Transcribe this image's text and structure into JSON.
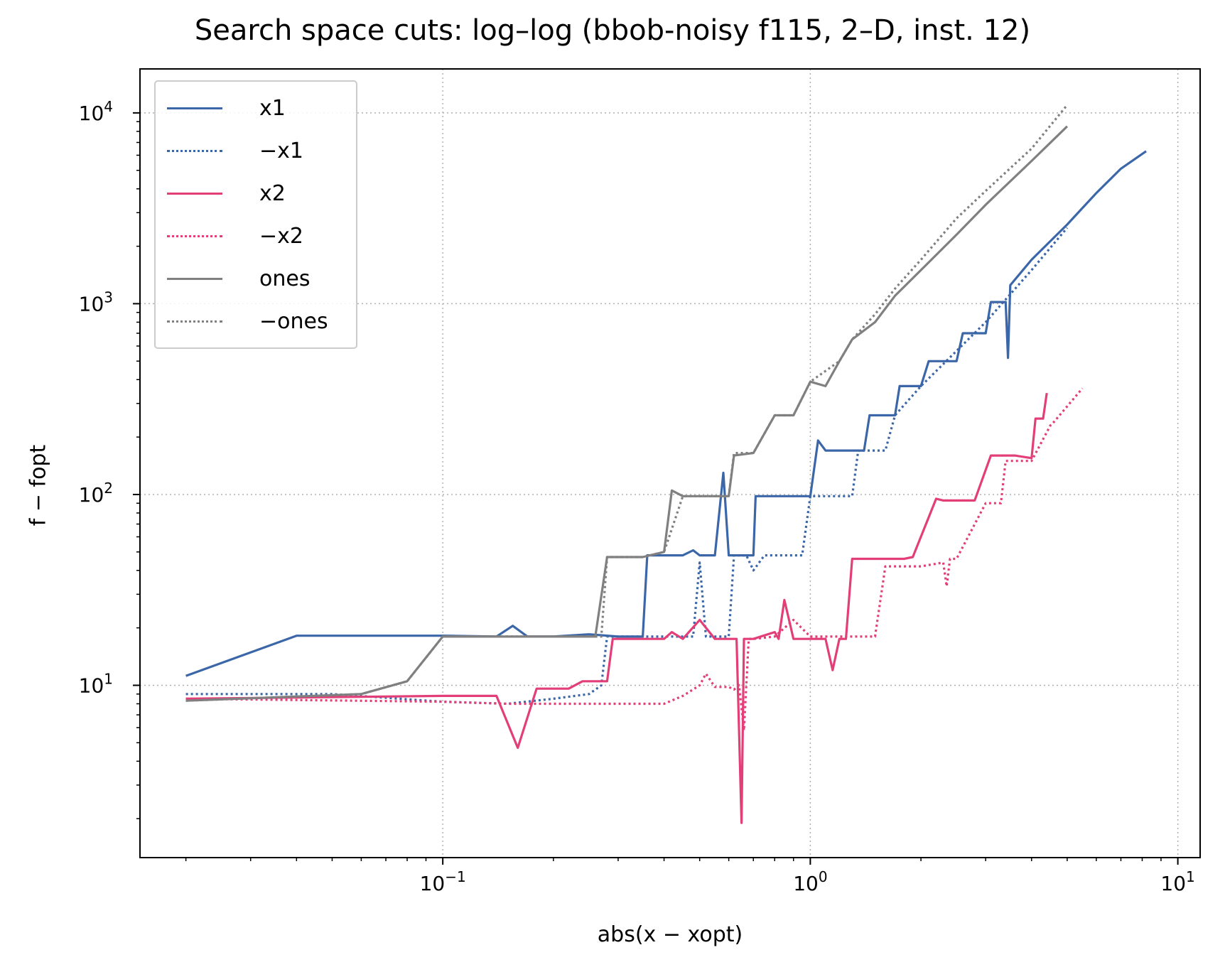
{
  "chart_data": {
    "type": "line",
    "title": "Search space cuts: log–log (bbob-noisy f115, 2–D, inst. 12)",
    "xlabel": "abs(x − xopt)",
    "ylabel": "f − fopt",
    "xscale": "log",
    "yscale": "log",
    "xlim": [
      0.015,
      11.5
    ],
    "ylim": [
      1.25,
      17000
    ],
    "grid": true,
    "grid_style": "dotted",
    "legend_position": "top-left",
    "x_tick_labels": [
      "10^-1",
      "10^0",
      "10^1"
    ],
    "y_tick_labels": [
      "10^1",
      "10^2",
      "10^3",
      "10^4"
    ],
    "series": [
      {
        "name": "x1",
        "color": "#3b66a8",
        "style": "solid",
        "x": [
          0.02,
          0.04,
          0.06,
          0.1,
          0.14,
          0.155,
          0.17,
          0.2,
          0.25,
          0.3,
          0.35,
          0.36,
          0.37,
          0.4,
          0.45,
          0.48,
          0.5,
          0.55,
          0.58,
          0.6,
          0.62,
          0.65,
          0.7,
          0.71,
          0.8,
          1.0,
          1.05,
          1.1,
          1.2,
          1.4,
          1.45,
          1.7,
          1.75,
          2.0,
          2.1,
          2.5,
          2.6,
          3.0,
          3.1,
          3.4,
          3.45,
          3.5,
          4.0,
          5.0,
          6.0,
          7.0,
          8.2
        ],
        "y": [
          11.2,
          18.2,
          18.2,
          18.2,
          18.0,
          20.5,
          18.0,
          18.0,
          18.5,
          18.0,
          18.0,
          48,
          48,
          48,
          48,
          51,
          48,
          48,
          130,
          48,
          48,
          48,
          48,
          98,
          98,
          98,
          192,
          170,
          170,
          170,
          260,
          260,
          370,
          370,
          500,
          500,
          700,
          700,
          1020,
          1020,
          520,
          1250,
          1700,
          2600,
          3800,
          5100,
          6300
        ]
      },
      {
        "name": "−x1",
        "color": "#3b66a8",
        "style": "dotted",
        "x": [
          0.02,
          0.05,
          0.1,
          0.15,
          0.2,
          0.25,
          0.27,
          0.28,
          0.4,
          0.48,
          0.5,
          0.52,
          0.55,
          0.6,
          0.62,
          0.67,
          0.7,
          0.75,
          0.8,
          0.9,
          0.95,
          1.0,
          1.2,
          1.3,
          1.35,
          1.6,
          1.7,
          2.0,
          3.0,
          4.0,
          5.0
        ],
        "y": [
          9.0,
          9.0,
          8.2,
          8.0,
          8.5,
          9.0,
          10.0,
          18.0,
          18.0,
          18.0,
          44,
          18.0,
          18.0,
          18.0,
          48,
          48,
          40,
          48,
          48,
          48,
          48,
          98,
          98,
          98,
          170,
          170,
          260,
          370,
          800,
          1500,
          2500
        ]
      },
      {
        "name": "x2",
        "color": "#e23f78",
        "style": "solid",
        "x": [
          0.02,
          0.1,
          0.14,
          0.16,
          0.18,
          0.22,
          0.24,
          0.28,
          0.29,
          0.4,
          0.42,
          0.45,
          0.5,
          0.55,
          0.6,
          0.63,
          0.65,
          0.66,
          0.68,
          0.7,
          0.8,
          0.82,
          0.85,
          0.9,
          1.0,
          1.1,
          1.15,
          1.2,
          1.25,
          1.3,
          1.5,
          1.8,
          1.9,
          2.2,
          2.3,
          2.5,
          2.8,
          3.1,
          3.2,
          3.6,
          4.0,
          4.1,
          4.3,
          4.4
        ],
        "y": [
          8.5,
          8.8,
          8.8,
          4.7,
          9.6,
          9.6,
          10.5,
          10.5,
          17.5,
          17.5,
          19,
          17.5,
          22,
          17.5,
          17.5,
          17.5,
          1.9,
          17.5,
          17.5,
          17.5,
          19,
          17.5,
          28,
          17.5,
          17.5,
          17.5,
          12,
          17.5,
          17.5,
          46,
          46,
          46,
          47,
          95,
          93,
          93,
          93,
          160,
          160,
          160,
          155,
          250,
          250,
          340
        ]
      },
      {
        "name": "−x2",
        "color": "#e23f78",
        "style": "dotted",
        "x": [
          0.02,
          0.1,
          0.15,
          0.2,
          0.3,
          0.4,
          0.45,
          0.5,
          0.52,
          0.55,
          0.6,
          0.62,
          0.64,
          0.66,
          0.68,
          0.7,
          0.8,
          0.9,
          1.0,
          1.5,
          1.6,
          2.0,
          2.3,
          2.35,
          2.4,
          2.5,
          3.0,
          3.3,
          3.4,
          4.0,
          4.5,
          4.6,
          5.5
        ],
        "y": [
          8.5,
          8.2,
          8.0,
          8.0,
          8.0,
          8.0,
          8.8,
          10.0,
          11.5,
          9.8,
          9.8,
          9.5,
          10.0,
          5.8,
          17.5,
          17.5,
          18.0,
          22,
          18.0,
          18.0,
          42,
          42,
          44,
          33,
          46,
          46,
          90,
          90,
          150,
          150,
          230,
          240,
          360
        ]
      },
      {
        "name": "ones",
        "color": "#808080",
        "style": "solid",
        "x": [
          0.02,
          0.06,
          0.08,
          0.1,
          0.15,
          0.2,
          0.25,
          0.26,
          0.28,
          0.35,
          0.4,
          0.42,
          0.45,
          0.5,
          0.6,
          0.62,
          0.7,
          0.8,
          0.9,
          1.0,
          1.1,
          1.2,
          1.3,
          1.5,
          1.7,
          2.0,
          2.5,
          3.0,
          4.0,
          5.0
        ],
        "y": [
          8.3,
          9.0,
          10.5,
          18.0,
          18.0,
          18.0,
          18.0,
          18.0,
          47,
          47,
          50,
          105,
          98,
          98,
          98,
          160,
          165,
          260,
          260,
          390,
          370,
          500,
          650,
          800,
          1100,
          1500,
          2300,
          3300,
          5600,
          8500
        ]
      },
      {
        "name": "−ones",
        "color": "#808080",
        "style": "dotted",
        "x": [
          0.02,
          0.06,
          0.08,
          0.1,
          0.2,
          0.25,
          0.27,
          0.28,
          0.35,
          0.4,
          0.45,
          0.5,
          0.6,
          0.62,
          0.7,
          0.8,
          0.9,
          1.0,
          1.2,
          1.3,
          1.5,
          1.7,
          2.0,
          2.5,
          3.0,
          4.0,
          5.0
        ],
        "y": [
          8.3,
          9.0,
          10.5,
          18.0,
          18.0,
          18.0,
          18.0,
          47,
          47,
          50,
          98,
          98,
          98,
          165,
          165,
          260,
          260,
          390,
          500,
          650,
          880,
          1200,
          1700,
          2800,
          3900,
          6500,
          11000
        ]
      }
    ]
  }
}
